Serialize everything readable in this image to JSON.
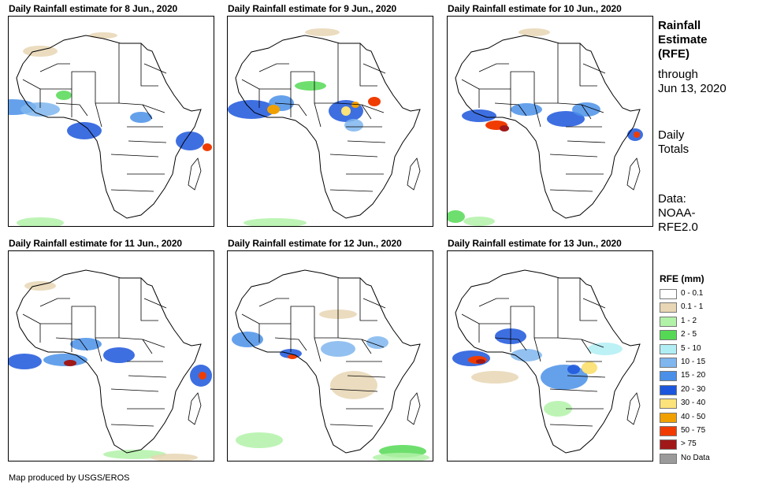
{
  "panels": [
    {
      "title": "Daily Rainfall estimate for 8 Jun., 2020",
      "day": "8 Jun."
    },
    {
      "title": "Daily Rainfall estimate for 9 Jun., 2020",
      "day": "9 Jun."
    },
    {
      "title": "Daily Rainfall estimate for 10 Jun., 2020",
      "day": "10 Jun."
    },
    {
      "title": "Daily Rainfall estimate for 11 Jun., 2020",
      "day": "11 Jun."
    },
    {
      "title": "Daily Rainfall estimate for 12 Jun., 2020",
      "day": "12 Jun."
    },
    {
      "title": "Daily Rainfall estimate for 13 Jun., 2020",
      "day": "13 Jun."
    }
  ],
  "side": {
    "title_line1": "Rainfall",
    "title_line2": "Estimate",
    "title_line3": "(RFE)",
    "through_label": "through",
    "through_date": "Jun 13, 2020",
    "totals_line1": "Daily",
    "totals_line2": "Totals",
    "data_line1": "Data:",
    "data_line2": "NOAA-",
    "data_line3": "RFE2.0"
  },
  "legend": {
    "title": "RFE (mm)",
    "items": [
      {
        "label": "0 - 0.1",
        "color": "#ffffff"
      },
      {
        "label": "0.1 - 1",
        "color": "#e8d6b4"
      },
      {
        "label": "1 - 2",
        "color": "#b2f2a8"
      },
      {
        "label": "2 - 5",
        "color": "#55d955"
      },
      {
        "label": "5 - 10",
        "color": "#b0eef4"
      },
      {
        "label": "10 - 15",
        "color": "#7fb6ee"
      },
      {
        "label": "15 - 20",
        "color": "#4a90e8"
      },
      {
        "label": "20 - 30",
        "color": "#1c56dc"
      },
      {
        "label": "30 - 40",
        "color": "#fbe27a"
      },
      {
        "label": "40 - 50",
        "color": "#f0a000"
      },
      {
        "label": "50 - 75",
        "color": "#f03c00"
      },
      {
        "label": "> 75",
        "color": "#a01818"
      },
      {
        "label": "No Data",
        "color": "#9a9a9a"
      }
    ]
  },
  "footer": "Map produced by USGS/EROS"
}
